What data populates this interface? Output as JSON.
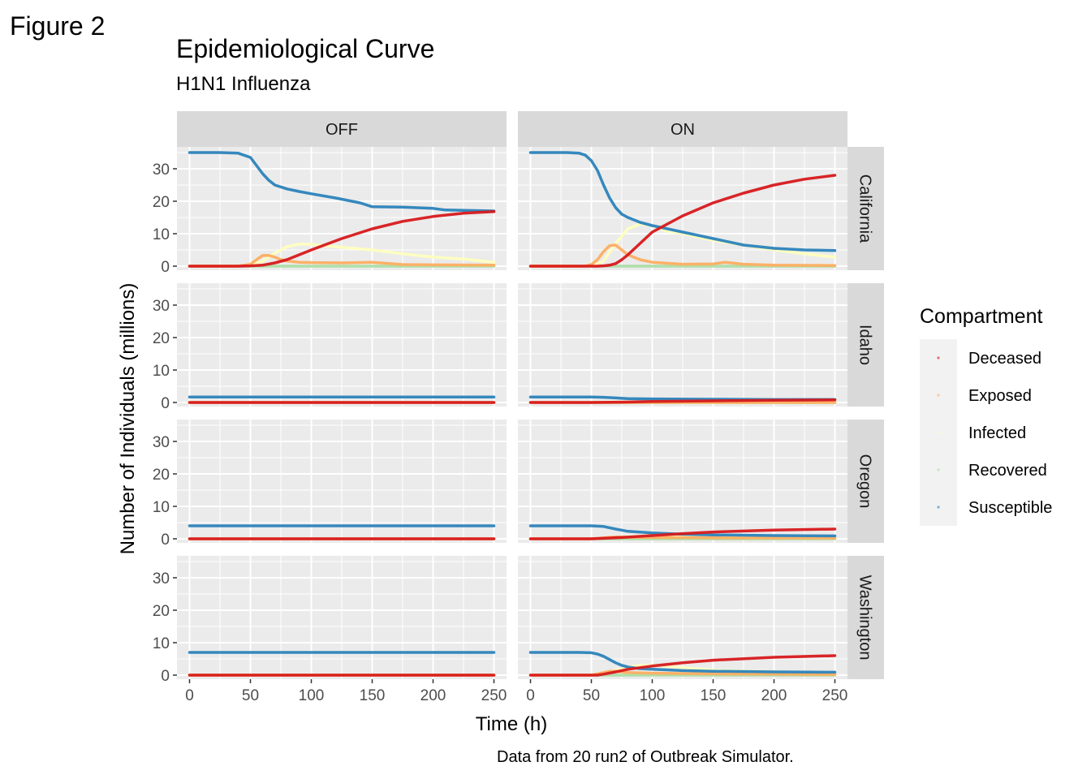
{
  "figure_label": "Figure 2",
  "chart_data": {
    "type": "line",
    "title": "Epidemiological Curve",
    "subtitle": "H1N1 Influenza",
    "xlabel": "Time (h)",
    "ylabel": "Number of Individuals (millions)",
    "caption": "Data from 20 run2 of Outbreak Simulator.",
    "xlim": [
      0,
      250
    ],
    "ylim": [
      0,
      37
    ],
    "xticks": [
      0,
      50,
      100,
      150,
      200,
      250
    ],
    "yticks": [
      0,
      10,
      20,
      30
    ],
    "grid": true,
    "legend_position": "right",
    "legend_title": "Compartment",
    "column_facets": [
      "OFF",
      "ON"
    ],
    "row_facets": [
      "California",
      "Idaho",
      "Oregon",
      "Washington"
    ],
    "series_names": [
      "Deceased",
      "Exposed",
      "Infected",
      "Recovered",
      "Susceptible"
    ],
    "colors": {
      "Deceased": "#d7191c",
      "Exposed": "#fdae61",
      "Infected": "#ffffbf",
      "Recovered": "#abdda4",
      "Susceptible": "#2b83ba",
      "panel_bg": "#ebebeb",
      "strip_bg": "#d9d9d9",
      "grid": "#ffffff",
      "axis_text": "#4d4d4d"
    },
    "panels": [
      {
        "column": "OFF",
        "row": "California",
        "series": {
          "Susceptible": {
            "x": [
              0,
              25,
              40,
              50,
              55,
              60,
              65,
              70,
              80,
              90,
              100,
              120,
              140,
              150,
              175,
              200,
              210,
              250
            ],
            "y": [
              35,
              35,
              34.8,
              33.5,
              31,
              28.5,
              26.5,
              25,
              23.8,
              23,
              22.3,
              21,
              19.5,
              18.3,
              18.2,
              17.8,
              17.3,
              17
            ]
          },
          "Deceased": {
            "x": [
              0,
              40,
              50,
              60,
              70,
              80,
              100,
              125,
              150,
              175,
              200,
              225,
              250
            ],
            "y": [
              0,
              0,
              0.1,
              0.3,
              1,
              2,
              5,
              8.5,
              11.5,
              13.8,
              15.3,
              16.3,
              16.8
            ]
          },
          "Exposed": {
            "x": [
              0,
              40,
              50,
              55,
              60,
              65,
              70,
              75,
              80,
              90,
              100,
              125,
              150,
              175,
              200,
              250
            ],
            "y": [
              0,
              0,
              0.6,
              2,
              3.3,
              3.3,
              2.8,
              2,
              1.6,
              1.2,
              1.1,
              1,
              1.2,
              0.5,
              0.4,
              0.3
            ]
          },
          "Infected": {
            "x": [
              0,
              40,
              50,
              60,
              70,
              80,
              90,
              100,
              125,
              150,
              175,
              200,
              225,
              250
            ],
            "y": [
              0,
              0,
              0.3,
              1.5,
              4,
              6,
              6.8,
              6.7,
              5.8,
              5,
              3.8,
              2.8,
              2.2,
              1.2
            ]
          },
          "Recovered": {
            "x": [
              0,
              250
            ],
            "y": [
              0,
              0
            ]
          }
        }
      },
      {
        "column": "ON",
        "row": "California",
        "series": {
          "Susceptible": {
            "x": [
              0,
              30,
              40,
              45,
              50,
              55,
              60,
              65,
              70,
              75,
              80,
              90,
              100,
              125,
              150,
              175,
              200,
              225,
              250
            ],
            "y": [
              35,
              35,
              34.8,
              34.2,
              32.5,
              29.5,
              25,
              21,
              18,
              16,
              15,
              13.5,
              12.5,
              10.5,
              8.5,
              6.5,
              5.5,
              5,
              4.8
            ]
          },
          "Deceased": {
            "x": [
              0,
              55,
              60,
              65,
              70,
              75,
              80,
              90,
              100,
              125,
              150,
              175,
              200,
              225,
              250
            ],
            "y": [
              0,
              0,
              0.1,
              0.3,
              0.8,
              2,
              3.5,
              7,
              10.5,
              15.5,
              19.5,
              22.5,
              25,
              26.8,
              28
            ]
          },
          "Exposed": {
            "x": [
              0,
              45,
              50,
              55,
              60,
              65,
              70,
              75,
              80,
              90,
              100,
              125,
              150,
              160,
              175,
              200,
              250
            ],
            "y": [
              0,
              0,
              0.5,
              2,
              4.5,
              6.3,
              6.5,
              5,
              3.5,
              2,
              1.2,
              0.6,
              0.7,
              1.2,
              0.6,
              0.3,
              0.2
            ]
          },
          "Infected": {
            "x": [
              0,
              50,
              60,
              70,
              80,
              90,
              100,
              110,
              125,
              150,
              175,
              200,
              225,
              250
            ],
            "y": [
              0,
              0,
              1.5,
              7,
              11.5,
              13,
              12.5,
              11,
              10,
              8,
              6.5,
              5,
              3.8,
              2.8
            ]
          },
          "Recovered": {
            "x": [
              0,
              250
            ],
            "y": [
              0,
              0
            ]
          }
        }
      },
      {
        "column": "OFF",
        "row": "Idaho",
        "series": {
          "Susceptible": {
            "x": [
              0,
              250
            ],
            "y": [
              1.7,
              1.7
            ]
          },
          "Deceased": {
            "x": [
              0,
              250
            ],
            "y": [
              0,
              0
            ]
          },
          "Exposed": {
            "x": [
              0,
              250
            ],
            "y": [
              0,
              0
            ]
          },
          "Infected": {
            "x": [
              0,
              250
            ],
            "y": [
              0,
              0
            ]
          },
          "Recovered": {
            "x": [
              0,
              250
            ],
            "y": [
              0,
              0
            ]
          }
        }
      },
      {
        "column": "ON",
        "row": "Idaho",
        "series": {
          "Susceptible": {
            "x": [
              0,
              50,
              60,
              70,
              80,
              100,
              150,
              200,
              250
            ],
            "y": [
              1.7,
              1.7,
              1.6,
              1.4,
              1.2,
              1.1,
              1,
              0.9,
              0.9
            ]
          },
          "Deceased": {
            "x": [
              0,
              50,
              75,
              100,
              150,
              200,
              250
            ],
            "y": [
              0,
              0,
              0.1,
              0.3,
              0.5,
              0.7,
              0.8
            ]
          },
          "Exposed": {
            "x": [
              0,
              250
            ],
            "y": [
              0,
              0
            ]
          },
          "Infected": {
            "x": [
              0,
              60,
              100,
              150,
              250
            ],
            "y": [
              0,
              0.1,
              0.3,
              0.2,
              0.1
            ]
          },
          "Recovered": {
            "x": [
              0,
              250
            ],
            "y": [
              0,
              0
            ]
          }
        }
      },
      {
        "column": "OFF",
        "row": "Oregon",
        "series": {
          "Susceptible": {
            "x": [
              0,
              250
            ],
            "y": [
              4,
              4
            ]
          },
          "Deceased": {
            "x": [
              0,
              250
            ],
            "y": [
              0,
              0
            ]
          },
          "Exposed": {
            "x": [
              0,
              250
            ],
            "y": [
              0,
              0
            ]
          },
          "Infected": {
            "x": [
              0,
              250
            ],
            "y": [
              0,
              0
            ]
          },
          "Recovered": {
            "x": [
              0,
              250
            ],
            "y": [
              0,
              0
            ]
          }
        }
      },
      {
        "column": "ON",
        "row": "Oregon",
        "series": {
          "Susceptible": {
            "x": [
              0,
              50,
              60,
              70,
              80,
              100,
              125,
              150,
              200,
              250
            ],
            "y": [
              4,
              4,
              3.8,
              3,
              2.3,
              1.8,
              1.4,
              1.2,
              1,
              0.9
            ]
          },
          "Deceased": {
            "x": [
              0,
              50,
              75,
              100,
              125,
              150,
              200,
              250
            ],
            "y": [
              0,
              0,
              0.4,
              1,
              1.6,
              2.1,
              2.7,
              3
            ]
          },
          "Exposed": {
            "x": [
              0,
              50,
              60,
              70,
              80,
              100,
              150,
              250
            ],
            "y": [
              0,
              0,
              0.3,
              0.6,
              0.5,
              0.4,
              0.3,
              0.2
            ]
          },
          "Infected": {
            "x": [
              0,
              50,
              75,
              100,
              125,
              150,
              200,
              250
            ],
            "y": [
              0,
              0,
              0.6,
              1,
              1,
              0.8,
              0.5,
              0.3
            ]
          },
          "Recovered": {
            "x": [
              0,
              250
            ],
            "y": [
              0,
              0
            ]
          }
        }
      },
      {
        "column": "OFF",
        "row": "Washington",
        "series": {
          "Susceptible": {
            "x": [
              0,
              250
            ],
            "y": [
              7,
              7
            ]
          },
          "Deceased": {
            "x": [
              0,
              250
            ],
            "y": [
              0,
              0
            ]
          },
          "Exposed": {
            "x": [
              0,
              250
            ],
            "y": [
              0,
              0
            ]
          },
          "Infected": {
            "x": [
              0,
              250
            ],
            "y": [
              0,
              0
            ]
          },
          "Recovered": {
            "x": [
              0,
              250
            ],
            "y": [
              0,
              0
            ]
          }
        }
      },
      {
        "column": "ON",
        "row": "Washington",
        "series": {
          "Susceptible": {
            "x": [
              0,
              40,
              50,
              55,
              60,
              65,
              70,
              75,
              80,
              90,
              100,
              125,
              150,
              200,
              250
            ],
            "y": [
              7,
              7,
              6.9,
              6.5,
              5.8,
              4.8,
              3.8,
              3,
              2.5,
              2,
              1.8,
              1.4,
              1.2,
              1,
              0.9
            ]
          },
          "Deceased": {
            "x": [
              0,
              55,
              60,
              70,
              80,
              100,
              125,
              150,
              200,
              250
            ],
            "y": [
              0,
              0,
              0.3,
              1,
              1.8,
              2.8,
              3.8,
              4.6,
              5.5,
              6
            ]
          },
          "Exposed": {
            "x": [
              0,
              50,
              60,
              65,
              70,
              80,
              100,
              125,
              150,
              200,
              250
            ],
            "y": [
              0,
              0,
              0.8,
              1.2,
              1.2,
              0.8,
              0.6,
              0.5,
              0.4,
              0.3,
              0.2
            ]
          },
          "Infected": {
            "x": [
              0,
              50,
              60,
              70,
              80,
              90,
              100,
              110,
              125,
              150,
              200,
              250
            ],
            "y": [
              0,
              0,
              0.5,
              1.5,
              2.5,
              3,
              3,
              2.8,
              2.3,
              1.5,
              1,
              0.5
            ]
          },
          "Recovered": {
            "x": [
              0,
              250
            ],
            "y": [
              0,
              0
            ]
          }
        }
      }
    ]
  }
}
